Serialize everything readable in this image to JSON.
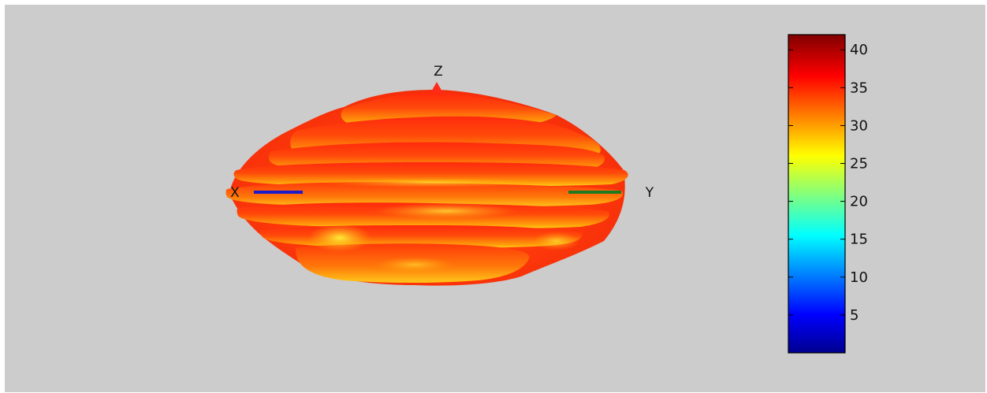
{
  "chart_data": {
    "type": "surface-3d",
    "axis_labels": {
      "x": "X",
      "y": "Y",
      "z": "Z"
    },
    "colorbar": {
      "colormap": "jet",
      "range": [
        0,
        42
      ],
      "ticks": [
        5,
        10,
        15,
        20,
        25,
        30,
        35,
        40
      ],
      "tick_labels": [
        "5",
        "10",
        "15",
        "20",
        "25",
        "30",
        "35",
        "40"
      ]
    },
    "axis_colors": {
      "x": "#1a1acc",
      "y": "#1f7a1f",
      "z": "#ff2a1a"
    },
    "surface_value_range": [
      25,
      38
    ],
    "grid": false
  }
}
